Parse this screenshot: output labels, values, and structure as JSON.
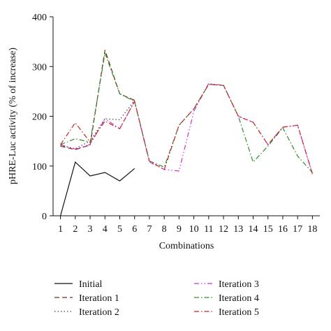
{
  "chart_data": {
    "type": "line",
    "title": "",
    "xlabel": "Combinations",
    "ylabel": "pHRE-Luc activity (% of increase)",
    "ylim": [
      0,
      400
    ],
    "yticks": [
      0,
      100,
      200,
      300,
      400
    ],
    "xlim": [
      0.5,
      18.5
    ],
    "categories": [
      "1",
      "2",
      "3",
      "4",
      "5",
      "6",
      "7",
      "8",
      "9",
      "10",
      "11",
      "12",
      "13",
      "14",
      "15",
      "16",
      "17",
      "18"
    ],
    "grid": false,
    "legend_position": "bottom",
    "series": [
      {
        "name": "Initial",
        "color": "#111111",
        "dash": "solid",
        "x": [
          1,
          2,
          3,
          4,
          5,
          6
        ],
        "values": [
          0,
          108,
          80,
          87,
          70,
          95
        ]
      },
      {
        "name": "Iteration 1",
        "color": "#7a2a1a",
        "dash": "dash",
        "x": [
          1,
          2,
          3,
          4,
          5,
          6
        ],
        "values": [
          140,
          133,
          142,
          333,
          245,
          232
        ]
      },
      {
        "name": "Iteration 2",
        "color": "#444444",
        "dash": "dot",
        "x": [
          1,
          2,
          3,
          4,
          5,
          6
        ],
        "values": [
          141,
          135,
          150,
          195,
          193,
          232
        ]
      },
      {
        "name": "Iteration 3",
        "color": "#cc33cc",
        "dash": "dashdotdot",
        "x": [
          1,
          2,
          3,
          4,
          5,
          6,
          7,
          8,
          9,
          10,
          11,
          12,
          13,
          14,
          15,
          16,
          17,
          18
        ],
        "values": [
          143,
          134,
          143,
          195,
          175,
          230,
          108,
          93,
          90,
          210,
          266,
          262,
          200,
          188,
          143,
          178,
          182,
          84
        ]
      },
      {
        "name": "Iteration 4",
        "color": "#2e8b2e",
        "dash": "dashdot",
        "x": [
          1,
          2,
          3,
          4,
          5,
          6,
          7,
          8,
          9,
          10,
          11,
          12,
          13,
          14,
          15,
          16,
          17,
          18
        ],
        "values": [
          143,
          155,
          148,
          327,
          245,
          230,
          110,
          98,
          182,
          215,
          264,
          262,
          200,
          108,
          140,
          177,
          120,
          87
        ]
      },
      {
        "name": "Iteration 5",
        "color": "#cc2222",
        "dash": "dashdot",
        "x": [
          1,
          2,
          3,
          4,
          5,
          6,
          7,
          8,
          9,
          10,
          11,
          12,
          13,
          14,
          15,
          16,
          17,
          18
        ],
        "values": [
          143,
          187,
          148,
          190,
          175,
          230,
          110,
          93,
          182,
          215,
          264,
          262,
          200,
          188,
          143,
          178,
          182,
          84
        ]
      }
    ]
  }
}
